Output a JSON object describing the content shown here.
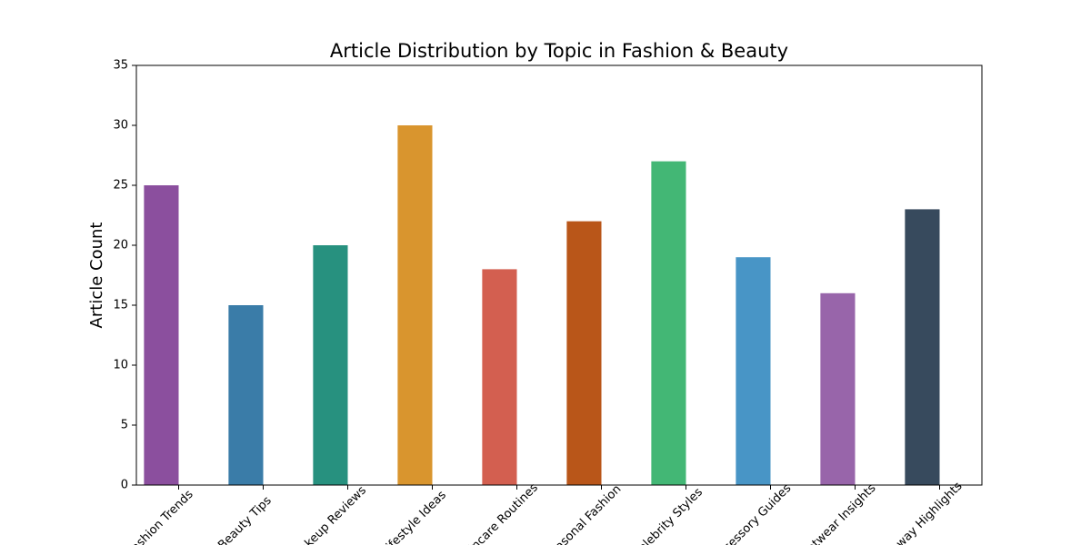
{
  "chart_data": {
    "type": "bar",
    "title": "Article Distribution by Topic in Fashion & Beauty",
    "y_label": "Article Count",
    "categories": [
      "Fashion Trends",
      "Beauty Tips",
      "Makeup Reviews",
      "Lifestyle Ideas",
      "Skincare Routines",
      "Seasonal Fashion",
      "Celebrity Styles",
      "Accessory Guides",
      "Footwear Insights",
      "Runway Highlights"
    ],
    "values": [
      25,
      15,
      20,
      30,
      18,
      22,
      27,
      19,
      16,
      23
    ],
    "colors": [
      "#8b4f9e",
      "#3a7ca8",
      "#27917f",
      "#d9952e",
      "#d35f50",
      "#b95619",
      "#43b775",
      "#4895c6",
      "#9865aa",
      "#374a5d"
    ],
    "ylim": [
      0,
      35
    ],
    "yticks": [
      0,
      5,
      10,
      15,
      20,
      25,
      30,
      35
    ]
  }
}
